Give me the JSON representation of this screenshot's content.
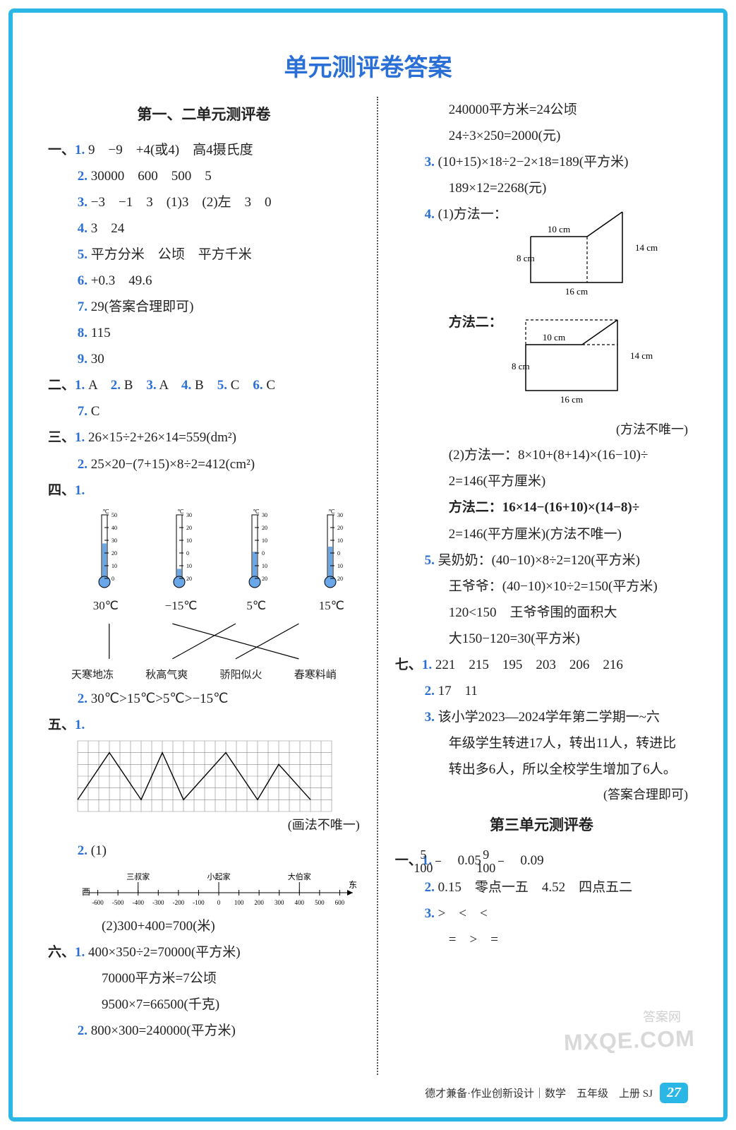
{
  "title": "单元测评卷答案",
  "section1_title": "第一、二单元测评卷",
  "section2_title": "第三单元测评卷",
  "footer_text": "德才兼备·作业创新设计｜数学　五年级　上册 SJ",
  "page_number": "27",
  "watermark_main": "MXQE.COM",
  "watermark_small": "答案网",
  "colors": {
    "border": "#2bb7e6",
    "title": "#2a6fd6",
    "subnum": "#2a6fd6",
    "text": "#222222"
  },
  "left": {
    "q1": {
      "label": "一、",
      "items": [
        {
          "n": "1.",
          "t": "9　−9　+4(或4)　高4摄氏度"
        },
        {
          "n": "2.",
          "t": "30000　600　500　5"
        },
        {
          "n": "3.",
          "t": "−3　−1　3　(1)3　(2)左　3　0"
        },
        {
          "n": "4.",
          "t": "3　24"
        },
        {
          "n": "5.",
          "t": "平方分米　公顷　平方千米"
        },
        {
          "n": "6.",
          "t": "+0.3　49.6"
        },
        {
          "n": "7.",
          "t": "29(答案合理即可)"
        },
        {
          "n": "8.",
          "t": "115"
        },
        {
          "n": "9.",
          "t": "30"
        }
      ]
    },
    "q2": {
      "label": "二、",
      "line1": "A　2. B　3. A　4. B　5. C　6. C",
      "line1_first": "1.",
      "line2_n": "7.",
      "line2_t": "C"
    },
    "q3": {
      "label": "三、",
      "items": [
        {
          "n": "1.",
          "t": "26×15÷2+26×14=559(dm²)"
        },
        {
          "n": "2.",
          "t": "25×20−(7+15)×8÷2=412(cm²)"
        }
      ]
    },
    "q4": {
      "label": "四、",
      "n1": "1.",
      "thermos": [
        {
          "scale": [
            "50",
            "40",
            "30",
            "20",
            "10",
            "0"
          ],
          "fill": 0.55,
          "temp": "30℃",
          "unit": "℃"
        },
        {
          "scale": [
            "30",
            "20",
            "10",
            "0",
            "10",
            "20"
          ],
          "fill": 0.15,
          "temp": "−15℃",
          "unit": "℃"
        },
        {
          "scale": [
            "30",
            "20",
            "10",
            "0",
            "10",
            "20"
          ],
          "fill": 0.42,
          "temp": "5℃",
          "unit": "℃"
        },
        {
          "scale": [
            "30",
            "20",
            "10",
            "0",
            "10",
            "20"
          ],
          "fill": 0.5,
          "temp": "15℃",
          "unit": "℃"
        }
      ],
      "idioms": [
        "天寒地冻",
        "秋高气爽",
        "骄阳似火",
        "春寒料峭"
      ],
      "cross_edges": [
        [
          0,
          0
        ],
        [
          1,
          3
        ],
        [
          2,
          1
        ],
        [
          3,
          2
        ]
      ],
      "n2": "2.",
      "t2": "30℃>15℃>5℃>−15℃"
    },
    "q5": {
      "label": "五、",
      "n1": "1.",
      "grid_note": "(画法不唯一)",
      "grid": {
        "cols": 24,
        "rows": 6,
        "poly": [
          [
            0,
            5
          ],
          [
            3,
            1
          ],
          [
            6,
            5
          ],
          [
            8,
            1
          ],
          [
            10,
            5
          ],
          [
            14,
            1
          ],
          [
            17,
            5
          ],
          [
            19,
            2
          ],
          [
            22,
            5
          ]
        ]
      },
      "n2": "2.",
      "t2": "(1)",
      "numline": {
        "labels_top": [
          "三叔家",
          "小起家",
          "大伯家"
        ],
        "label_top_x": [
          -400,
          0,
          400
        ],
        "ticks": [
          -600,
          -500,
          -400,
          -300,
          -200,
          -100,
          0,
          100,
          200,
          300,
          400,
          500,
          600
        ],
        "left_label": "西",
        "right_label": "东"
      },
      "t2b": "(2)300+400=700(米)"
    },
    "q6": {
      "label": "六、",
      "items": [
        {
          "n": "1.",
          "lines": [
            "400×350÷2=70000(平方米)",
            "70000平方米=7公顷",
            "9500×7=66500(千克)"
          ]
        },
        {
          "n": "2.",
          "lines": [
            "800×300=240000(平方米)"
          ]
        }
      ]
    }
  },
  "right": {
    "cont_lines": [
      "240000平方米=24公顷",
      "24÷3×250=2000(元)"
    ],
    "q6_3": {
      "n": "3.",
      "lines": [
        "(10+15)×18÷2−2×18=189(平方米)",
        "189×12=2268(元)"
      ]
    },
    "q6_4": {
      "n": "4.",
      "t": "(1)方法一：",
      "fig1": {
        "labels": {
          "top": "10 cm",
          "right": "14 cm",
          "left": "8 cm",
          "bottom": "16 cm"
        }
      },
      "t2": "方法二：",
      "fig2": {
        "labels": {
          "top": "10 cm",
          "right": "14 cm",
          "left": "8 cm",
          "bottom": "16 cm"
        }
      },
      "note": "(方法不唯一)",
      "p2a": "(2)方法一：8×10+(8+14)×(16−10)÷",
      "p2a2": "2=146(平方厘米)",
      "p2b": "方法二：16×14−(16+10)×(14−8)÷",
      "p2b2": "2=146(平方厘米)(方法不唯一)"
    },
    "q6_5": {
      "n": "5.",
      "lines": [
        "吴奶奶：(40−10)×8÷2=120(平方米)",
        "王爷爷：(40−10)×10÷2=150(平方米)",
        "120<150　王爷爷围的面积大",
        "大150−120=30(平方米)"
      ]
    },
    "q7": {
      "label": "七、",
      "items": [
        {
          "n": "1.",
          "t": "221　215　195　203　206　216"
        },
        {
          "n": "2.",
          "t": "17　11"
        },
        {
          "n": "3.",
          "lines": [
            "该小学2023—2024学年第二学期一~六",
            "年级学生转进17人，转出11人，转进比",
            "转出多6人，所以全校学生增加了6人。",
            "(答案合理即可)"
          ]
        }
      ]
    },
    "sec2": {
      "q1": {
        "label": "一、",
        "items": [
          {
            "n": "1.",
            "frac1": {
              "n": "5",
              "d": "100"
            },
            "mid1": "0.05",
            "frac2": {
              "n": "9",
              "d": "100"
            },
            "mid2": "0.09"
          },
          {
            "n": "2.",
            "t": "0.15　零点一五　4.52　四点五二"
          },
          {
            "n": "3.",
            "t": ">　<　<",
            "t2": "=　>　="
          }
        ]
      }
    }
  }
}
